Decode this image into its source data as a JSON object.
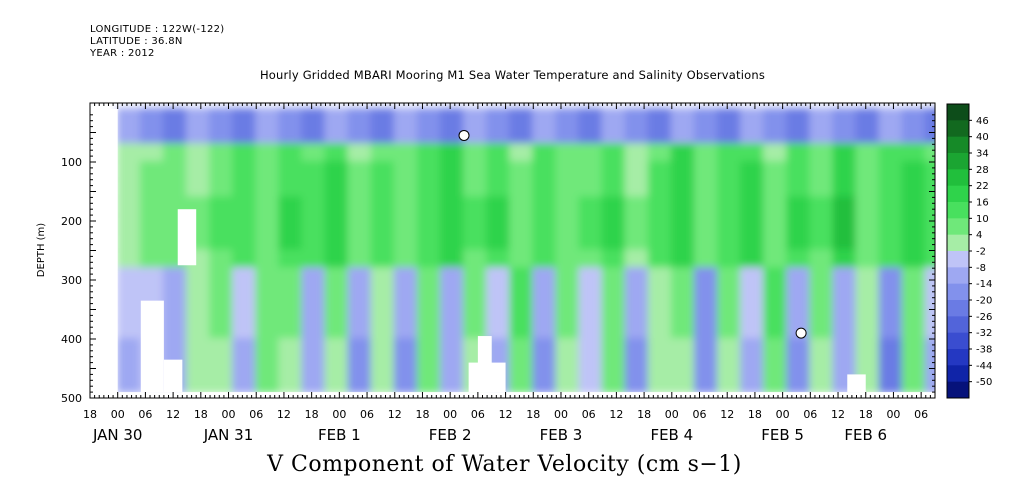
{
  "header": {
    "longitude": "LONGITUDE : 122W(-122)",
    "latitude": "LATITUDE : 36.8N",
    "year": "YEAR : 2012",
    "title": "Hourly Gridded MBARI Mooring M1 Sea Water Temperature and Salinity Observations"
  },
  "chart_data": {
    "type": "heatmap",
    "title": "Hourly Gridded MBARI Mooring M1 Sea Water Temperature and Salinity Observations",
    "xlabel": "",
    "ylabel": "DEPTH (m)",
    "variable_label": "V Component of Water Velocity (cm s−1)",
    "x_range_hours": [
      -6,
      177
    ],
    "y_range": [
      0,
      500
    ],
    "y_ticks": [
      100,
      200,
      300,
      400,
      500
    ],
    "x_hour_ticks": [
      "18",
      "00",
      "06",
      "12",
      "18",
      "00",
      "06",
      "12",
      "18",
      "00",
      "06",
      "12",
      "18",
      "00",
      "06",
      "12",
      "18",
      "00",
      "06",
      "12",
      "18",
      "00",
      "06",
      "12",
      "18",
      "00",
      "06",
      "12",
      "18",
      "00",
      "06"
    ],
    "x_day_labels": [
      {
        "label": "JAN 30",
        "hour": 0
      },
      {
        "label": "JAN 31",
        "hour": 24
      },
      {
        "label": "FEB  1",
        "hour": 48
      },
      {
        "label": "FEB  2",
        "hour": 72
      },
      {
        "label": "FEB  3",
        "hour": 96
      },
      {
        "label": "FEB  4",
        "hour": 120
      },
      {
        "label": "FEB  5",
        "hour": 144
      },
      {
        "label": "FEB  6",
        "hour": 162
      }
    ],
    "colorbar": {
      "levels": [
        "46",
        "40",
        "34",
        "28",
        "22",
        "16",
        "10",
        "4",
        "-2",
        "-8",
        "-14",
        "-20",
        "-26",
        "-32",
        "-38",
        "-44",
        "-50"
      ],
      "colors": [
        "#0d4d1a",
        "#12691f",
        "#168a28",
        "#1ba532",
        "#21bf3c",
        "#2fd34b",
        "#48e05e",
        "#6fe87a",
        "#a6eda6",
        "#bfc4f7",
        "#9ea8f2",
        "#8291ec",
        "#6a7be4",
        "#5264da",
        "#3a4dd0",
        "#2438c2",
        "#1024a8",
        "#06127a"
      ]
    },
    "series": [
      {
        "hours": [
          0,
          5,
          10,
          15,
          20,
          25,
          30,
          35,
          40,
          45,
          50,
          55,
          60,
          65,
          70,
          75,
          80,
          85,
          90,
          95,
          100,
          105,
          110,
          115,
          120,
          125,
          130,
          135,
          140,
          145,
          150,
          155,
          160,
          165,
          170,
          175
        ],
        "upper_velocity": [
          4,
          8,
          10,
          6,
          12,
          16,
          10,
          18,
          14,
          20,
          8,
          14,
          10,
          16,
          22,
          12,
          18,
          8,
          16,
          10,
          12,
          18,
          6,
          14,
          22,
          10,
          16,
          20,
          8,
          18,
          12,
          24,
          10,
          16,
          20,
          14
        ],
        "lower_velocity": [
          -8,
          -4,
          -10,
          2,
          6,
          -6,
          8,
          4,
          -10,
          6,
          -12,
          2,
          -14,
          8,
          -10,
          4,
          -8,
          10,
          -12,
          6,
          -4,
          8,
          -14,
          2,
          6,
          -16,
          4,
          -6,
          10,
          -12,
          6,
          -10,
          2,
          -18,
          8,
          -6
        ]
      }
    ],
    "missing_regions": [
      {
        "hour_start": -6,
        "hour_end": 0,
        "depth_start": 10,
        "depth_end": 500
      },
      {
        "hour_start": 13,
        "hour_end": 17,
        "depth_start": 180,
        "depth_end": 275
      },
      {
        "hour_start": 5,
        "hour_end": 10,
        "depth_start": 335,
        "depth_end": 490
      },
      {
        "hour_start": 10,
        "hour_end": 14,
        "depth_start": 435,
        "depth_end": 490
      },
      {
        "hour_start": 78,
        "hour_end": 81,
        "depth_start": 395,
        "depth_end": 490
      },
      {
        "hour_start": 76,
        "hour_end": 84,
        "depth_start": 440,
        "depth_end": 490
      },
      {
        "hour_start": 158,
        "hour_end": 162,
        "depth_start": 460,
        "depth_end": 490
      }
    ],
    "grid": false
  }
}
